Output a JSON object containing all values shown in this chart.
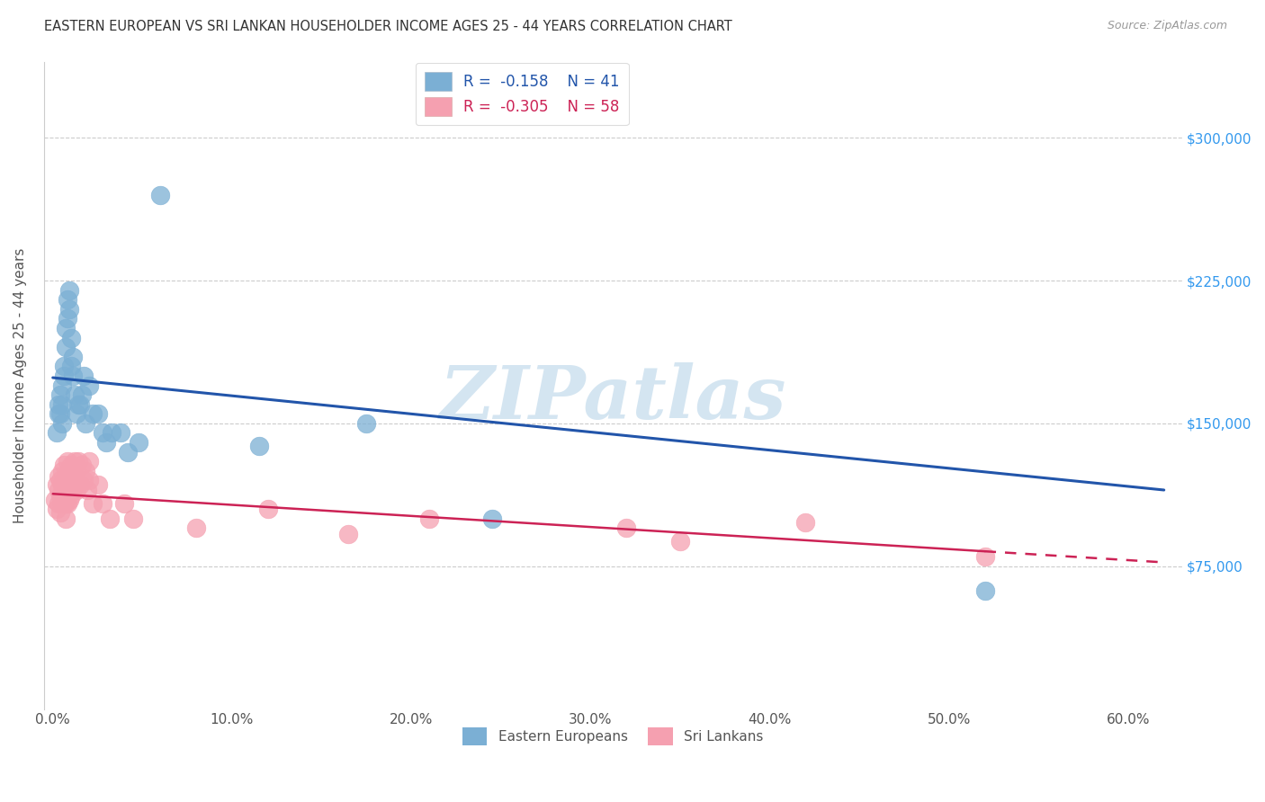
{
  "title": "EASTERN EUROPEAN VS SRI LANKAN HOUSEHOLDER INCOME AGES 25 - 44 YEARS CORRELATION CHART",
  "source": "Source: ZipAtlas.com",
  "ylabel": "Householder Income Ages 25 - 44 years",
  "xlabel_ticks": [
    "0.0%",
    "10.0%",
    "20.0%",
    "30.0%",
    "40.0%",
    "50.0%",
    "60.0%"
  ],
  "xlabel_vals": [
    0.0,
    0.1,
    0.2,
    0.3,
    0.4,
    0.5,
    0.6
  ],
  "ylabel_ticks": [
    "$75,000",
    "$150,000",
    "$225,000",
    "$300,000"
  ],
  "ylabel_vals": [
    75000,
    150000,
    225000,
    300000
  ],
  "ylim": [
    0,
    340000
  ],
  "xlim": [
    -0.005,
    0.63
  ],
  "r_ee": -0.158,
  "n_ee": 41,
  "r_sl": -0.305,
  "n_sl": 58,
  "blue_color": "#7bafd4",
  "pink_color": "#f5a0b0",
  "line_blue": "#2255aa",
  "line_pink": "#cc2255",
  "watermark": "ZIPatlas",
  "watermark_color": "#b8d4e8",
  "legend_text_blue": "#2255aa",
  "legend_text_pink": "#cc2255",
  "ee_line_x0": 0.0,
  "ee_line_y0": 174000,
  "ee_line_x1": 0.62,
  "ee_line_y1": 115000,
  "sl_line_x0": 0.0,
  "sl_line_y0": 113000,
  "sl_line_x1": 0.62,
  "sl_line_y1": 77000,
  "ee_x": [
    0.002,
    0.003,
    0.003,
    0.004,
    0.004,
    0.005,
    0.005,
    0.005,
    0.006,
    0.006,
    0.007,
    0.007,
    0.008,
    0.008,
    0.009,
    0.009,
    0.01,
    0.01,
    0.011,
    0.011,
    0.012,
    0.013,
    0.014,
    0.015,
    0.016,
    0.017,
    0.018,
    0.02,
    0.022,
    0.025,
    0.028,
    0.03,
    0.033,
    0.038,
    0.042,
    0.048,
    0.06,
    0.115,
    0.175,
    0.245,
    0.52
  ],
  "ee_y": [
    145000,
    155000,
    160000,
    165000,
    155000,
    170000,
    160000,
    150000,
    175000,
    180000,
    190000,
    200000,
    205000,
    215000,
    220000,
    210000,
    195000,
    180000,
    185000,
    175000,
    165000,
    155000,
    160000,
    160000,
    165000,
    175000,
    150000,
    170000,
    155000,
    155000,
    145000,
    140000,
    145000,
    145000,
    135000,
    140000,
    270000,
    138000,
    150000,
    100000,
    62000
  ],
  "sl_x": [
    0.001,
    0.002,
    0.002,
    0.003,
    0.003,
    0.003,
    0.004,
    0.004,
    0.004,
    0.005,
    0.005,
    0.005,
    0.006,
    0.006,
    0.006,
    0.006,
    0.007,
    0.007,
    0.007,
    0.007,
    0.008,
    0.008,
    0.008,
    0.008,
    0.009,
    0.009,
    0.009,
    0.01,
    0.01,
    0.01,
    0.011,
    0.011,
    0.012,
    0.012,
    0.013,
    0.013,
    0.014,
    0.015,
    0.016,
    0.017,
    0.018,
    0.019,
    0.02,
    0.02,
    0.022,
    0.025,
    0.028,
    0.032,
    0.04,
    0.045,
    0.08,
    0.12,
    0.165,
    0.21,
    0.32,
    0.35,
    0.42,
    0.52
  ],
  "sl_y": [
    110000,
    118000,
    105000,
    122000,
    115000,
    108000,
    120000,
    112000,
    103000,
    125000,
    118000,
    108000,
    128000,
    120000,
    115000,
    108000,
    122000,
    115000,
    108000,
    100000,
    130000,
    122000,
    115000,
    108000,
    125000,
    118000,
    110000,
    128000,
    120000,
    112000,
    122000,
    115000,
    130000,
    120000,
    125000,
    115000,
    130000,
    118000,
    128000,
    120000,
    125000,
    115000,
    130000,
    120000,
    108000,
    118000,
    108000,
    100000,
    108000,
    100000,
    95000,
    105000,
    92000,
    100000,
    95000,
    88000,
    98000,
    80000
  ]
}
